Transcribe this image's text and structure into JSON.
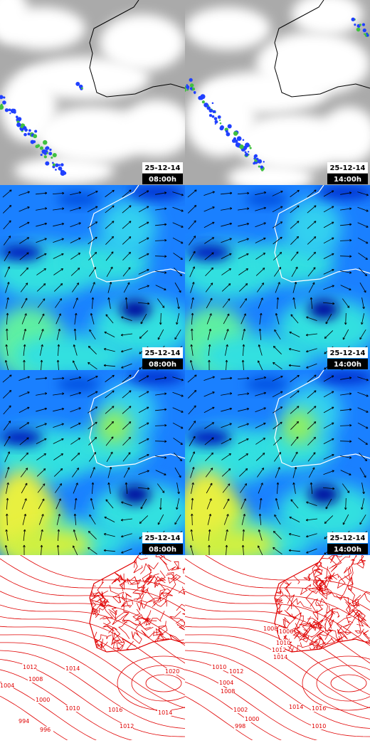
{
  "rows": [
    {
      "panels": [
        {
          "date": "25-12-14",
          "time": "08:00h"
        },
        {
          "date": "25-12-14",
          "time": "14:00h"
        }
      ]
    },
    {
      "panels": [
        {
          "date": "25-12-14",
          "time": "08:00h"
        },
        {
          "date": "25-12-14",
          "time": "14:00h"
        }
      ]
    },
    {
      "panels": [
        {
          "date": "25-12-14",
          "time": "08:00h"
        },
        {
          "date": "25-12-14",
          "time": "14:00h"
        }
      ]
    },
    {
      "panels": [
        {
          "labels": [
            "1014",
            "1012",
            "1008",
            "1004",
            "1000",
            "1010",
            "1016",
            "1014",
            "1012",
            "1020",
            "994",
            "996"
          ]
        },
        {
          "labels": [
            "1006",
            "1008",
            "1010",
            "1012",
            "1014",
            "1010",
            "1012",
            "1004",
            "1008",
            "1002",
            "1000",
            "998",
            "1014",
            "1016",
            "1010"
          ]
        }
      ]
    }
  ]
}
